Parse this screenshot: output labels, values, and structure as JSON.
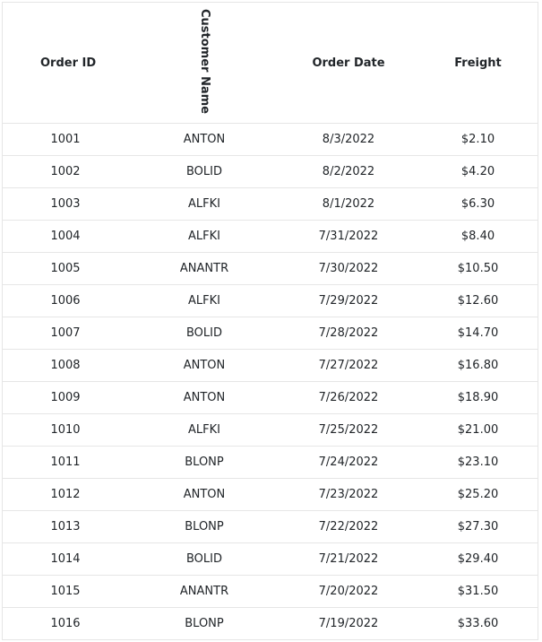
{
  "grid": {
    "headers": {
      "order_id": "Order ID",
      "customer_name": "Customer Name",
      "order_date": "Order Date",
      "freight": "Freight"
    },
    "rows": [
      {
        "order_id": "1001",
        "customer_name": "ANTON",
        "order_date": "8/3/2022",
        "freight": "$2.10"
      },
      {
        "order_id": "1002",
        "customer_name": "BOLID",
        "order_date": "8/2/2022",
        "freight": "$4.20"
      },
      {
        "order_id": "1003",
        "customer_name": "ALFKI",
        "order_date": "8/1/2022",
        "freight": "$6.30"
      },
      {
        "order_id": "1004",
        "customer_name": "ALFKI",
        "order_date": "7/31/2022",
        "freight": "$8.40"
      },
      {
        "order_id": "1005",
        "customer_name": "ANANTR",
        "order_date": "7/30/2022",
        "freight": "$10.50"
      },
      {
        "order_id": "1006",
        "customer_name": "ALFKI",
        "order_date": "7/29/2022",
        "freight": "$12.60"
      },
      {
        "order_id": "1007",
        "customer_name": "BOLID",
        "order_date": "7/28/2022",
        "freight": "$14.70"
      },
      {
        "order_id": "1008",
        "customer_name": "ANTON",
        "order_date": "7/27/2022",
        "freight": "$16.80"
      },
      {
        "order_id": "1009",
        "customer_name": "ANTON",
        "order_date": "7/26/2022",
        "freight": "$18.90"
      },
      {
        "order_id": "1010",
        "customer_name": "ALFKI",
        "order_date": "7/25/2022",
        "freight": "$21.00"
      },
      {
        "order_id": "1011",
        "customer_name": "BLONP",
        "order_date": "7/24/2022",
        "freight": "$23.10"
      },
      {
        "order_id": "1012",
        "customer_name": "ANTON",
        "order_date": "7/23/2022",
        "freight": "$25.20"
      },
      {
        "order_id": "1013",
        "customer_name": "BLONP",
        "order_date": "7/22/2022",
        "freight": "$27.30"
      },
      {
        "order_id": "1014",
        "customer_name": "BOLID",
        "order_date": "7/21/2022",
        "freight": "$29.40"
      },
      {
        "order_id": "1015",
        "customer_name": "ANANTR",
        "order_date": "7/20/2022",
        "freight": "$31.50"
      },
      {
        "order_id": "1016",
        "customer_name": "BLONP",
        "order_date": "7/19/2022",
        "freight": "$33.60"
      }
    ]
  }
}
